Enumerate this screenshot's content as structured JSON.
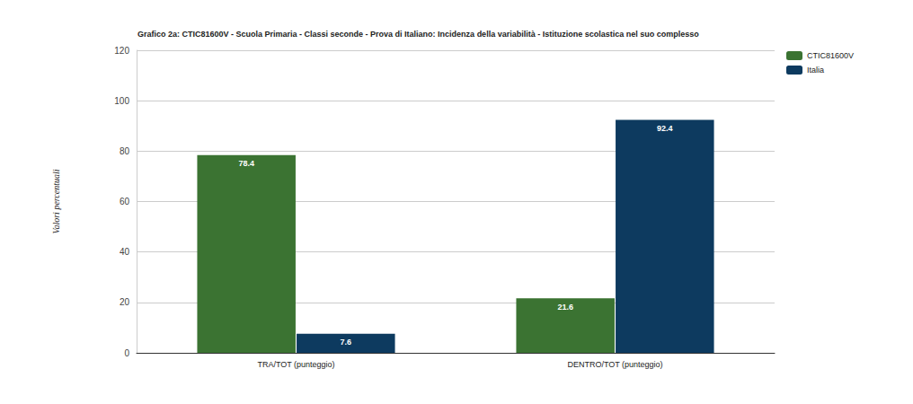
{
  "chart_data": {
    "type": "bar",
    "title": "Grafico 2a: CTIC81600V - Scuola Primaria - Classi seconde - Prova di Italiano: Incidenza della variabilità - Istituzione scolastica nel suo complesso",
    "y_label": "Valori percentuali",
    "categories": [
      "TRA/TOT (punteggio)",
      "DENTRO/TOT (punteggio)"
    ],
    "series": [
      {
        "name": "CTIC81600V",
        "color": "#3b7332",
        "values": [
          78.4,
          21.6
        ]
      },
      {
        "name": "Italia",
        "color": "#0d3a5f",
        "values": [
          7.6,
          92.4
        ]
      }
    ],
    "ylim": [
      0,
      120
    ],
    "yticks": [
      0,
      20,
      40,
      60,
      80,
      100,
      120
    ],
    "grid": true,
    "legend": "upper right",
    "data_labels": true
  }
}
